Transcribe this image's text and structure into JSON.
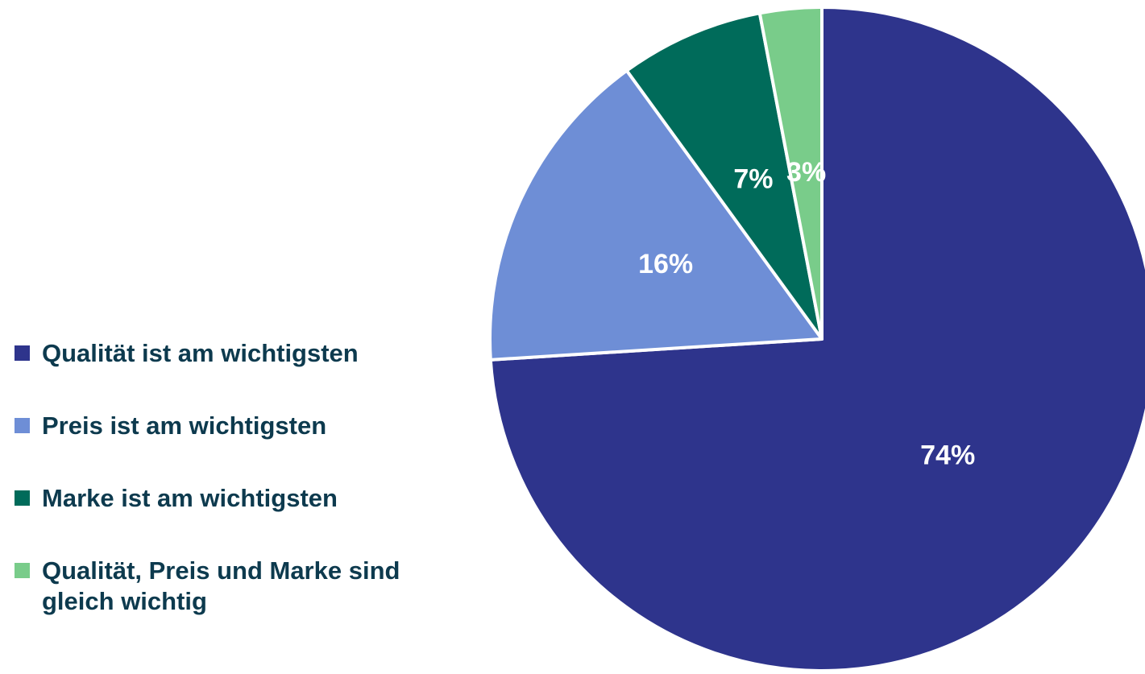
{
  "chart_data": {
    "type": "pie",
    "categories": [
      "Qualität ist am wichtigsten",
      "Preis ist am wichtigsten",
      "Marke ist am wichtigsten",
      "Qualität, Preis und Marke sind gleich wichtig"
    ],
    "values": [
      74,
      16,
      7,
      3
    ],
    "value_labels": [
      "74%",
      "16%",
      "7%",
      "3%"
    ],
    "colors": [
      "#2e348c",
      "#6e8ed6",
      "#006b5a",
      "#79cc8a"
    ],
    "legend": "left"
  }
}
